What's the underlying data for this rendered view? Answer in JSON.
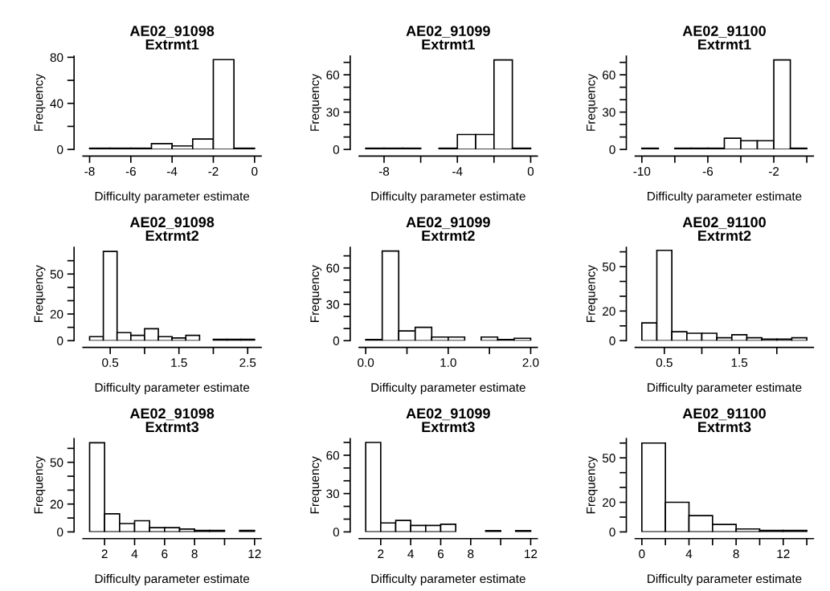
{
  "chart_data": [
    {
      "type": "histogram",
      "title": "AE02_91098\nExtrmt1",
      "xlabel": "Difficulty parameter estimate",
      "ylabel": "Frequency",
      "color": "#ffffff",
      "bins": [
        -8,
        -7,
        -6,
        -5,
        -4,
        -3,
        -2,
        -1,
        0
      ],
      "values": [
        1,
        1,
        1,
        5,
        3,
        9,
        78,
        1
      ],
      "xlim": [
        -8.32,
        0.32
      ],
      "ylim": [
        0,
        81
      ],
      "xticks": [
        -8,
        -6,
        -4,
        -2,
        0
      ],
      "yticks": [
        0,
        {
          "value": 20,
          "label": null
        },
        40,
        {
          "value": 60,
          "label": null
        },
        80
      ]
    },
    {
      "type": "histogram",
      "title": "AE02_91099\nExtrmt1",
      "xlabel": "Difficulty parameter estimate",
      "ylabel": "Frequency",
      "color": "#ffffff",
      "bins": [
        -9,
        -8,
        -7,
        -6,
        -5,
        -4,
        -3,
        -2,
        -1,
        0
      ],
      "values": [
        1,
        1,
        1,
        0,
        1,
        12,
        12,
        72,
        1
      ],
      "xlim": [
        -9.36,
        0.36
      ],
      "ylim": [
        0,
        75
      ],
      "xticks": [
        -8,
        {
          "value": -6,
          "label": null
        },
        -4,
        {
          "value": -2,
          "label": null
        },
        0
      ],
      "yticks": [
        0,
        {
          "value": 10,
          "label": null
        },
        {
          "value": 20,
          "label": null
        },
        30,
        {
          "value": 40,
          "label": null
        },
        {
          "value": 50,
          "label": null
        },
        60,
        {
          "value": 70,
          "label": null
        }
      ]
    },
    {
      "type": "histogram",
      "title": "AE02_91100\nExtrmt1",
      "xlabel": "Difficulty parameter estimate",
      "ylabel": "Frequency",
      "color": "#ffffff",
      "bins": [
        -10,
        -9,
        -8,
        -7,
        -6,
        -5,
        -4,
        -3,
        -2,
        -1,
        0
      ],
      "values": [
        1,
        0,
        1,
        1,
        1,
        9,
        7,
        7,
        72,
        1
      ],
      "xlim": [
        -10.4,
        0.4
      ],
      "ylim": [
        0,
        75
      ],
      "xticks": [
        -10,
        {
          "value": -8,
          "label": null
        },
        -6,
        {
          "value": -4,
          "label": null
        },
        -2,
        {
          "value": 0,
          "label": null
        }
      ],
      "yticks": [
        0,
        {
          "value": 10,
          "label": null
        },
        {
          "value": 20,
          "label": null
        },
        30,
        {
          "value": 40,
          "label": null
        },
        {
          "value": 50,
          "label": null
        },
        60,
        {
          "value": 70,
          "label": null
        }
      ]
    },
    {
      "type": "histogram",
      "title": "AE02_91098\nExtrmt2",
      "xlabel": "Difficulty parameter estimate",
      "ylabel": "Frequency",
      "color": "#ffffff",
      "bins": [
        0.2,
        0.4,
        0.6,
        0.8,
        1.0,
        1.2,
        1.4,
        1.6,
        1.8,
        2.0,
        2.2,
        2.4,
        2.6
      ],
      "values": [
        3,
        67,
        6,
        4,
        9,
        3,
        2,
        4,
        0,
        1,
        1,
        1
      ],
      "xlim": [
        0.104,
        2.696
      ],
      "ylim": [
        0,
        70
      ],
      "xticks": [
        0.5,
        {
          "value": 1.0,
          "label": null
        },
        1.5,
        {
          "value": 2.0,
          "label": null
        },
        2.5
      ],
      "yticks": [
        0,
        {
          "value": 10,
          "label": null
        },
        20,
        {
          "value": 30,
          "label": null
        },
        {
          "value": 40,
          "label": null
        },
        50,
        {
          "value": 60,
          "label": null
        }
      ]
    },
    {
      "type": "histogram",
      "title": "AE02_91099\nExtrmt2",
      "xlabel": "Difficulty parameter estimate",
      "ylabel": "Frequency",
      "color": "#ffffff",
      "bins": [
        0.0,
        0.2,
        0.4,
        0.6,
        0.8,
        1.0,
        1.2,
        1.4,
        1.6,
        1.8,
        2.0
      ],
      "values": [
        1,
        74,
        8,
        11,
        3,
        3,
        0,
        3,
        1,
        2
      ],
      "xlim": [
        -0.08,
        2.08
      ],
      "ylim": [
        0,
        77
      ],
      "xticks": [
        {
          "value": 0.0,
          "label": "0.0"
        },
        {
          "value": 0.5,
          "label": null
        },
        {
          "value": 1.0,
          "label": "1.0"
        },
        {
          "value": 1.5,
          "label": null
        },
        {
          "value": 2.0,
          "label": "2.0"
        }
      ],
      "yticks": [
        0,
        {
          "value": 10,
          "label": null
        },
        {
          "value": 20,
          "label": null
        },
        30,
        {
          "value": 40,
          "label": null
        },
        {
          "value": 50,
          "label": null
        },
        60,
        {
          "value": 70,
          "label": null
        }
      ]
    },
    {
      "type": "histogram",
      "title": "AE02_91100\nExtrmt2",
      "xlabel": "Difficulty parameter estimate",
      "ylabel": "Frequency",
      "color": "#ffffff",
      "bins": [
        0.2,
        0.4,
        0.6,
        0.8,
        1.0,
        1.2,
        1.4,
        1.6,
        1.8,
        2.0,
        2.2,
        2.4
      ],
      "values": [
        12,
        61,
        6,
        5,
        5,
        2,
        4,
        2,
        1,
        1,
        2
      ],
      "xlim": [
        0.112,
        2.488
      ],
      "ylim": [
        0,
        63
      ],
      "xticks": [
        0.5,
        {
          "value": 1.0,
          "label": null
        },
        1.5,
        {
          "value": 2.0,
          "label": null
        }
      ],
      "yticks": [
        0,
        {
          "value": 10,
          "label": null
        },
        20,
        {
          "value": 30,
          "label": null
        },
        {
          "value": 40,
          "label": null
        },
        50,
        {
          "value": 60,
          "label": null
        }
      ]
    },
    {
      "type": "histogram",
      "title": "AE02_91098\nExtrmt3",
      "xlabel": "Difficulty parameter estimate",
      "ylabel": "Frequency",
      "color": "#ffffff",
      "bins": [
        1,
        2,
        3,
        4,
        5,
        6,
        7,
        8,
        9,
        10,
        11,
        12
      ],
      "values": [
        64,
        13,
        6,
        8,
        3,
        3,
        2,
        1,
        1,
        0,
        1
      ],
      "xlim": [
        0.56,
        12.44
      ],
      "ylim": [
        0,
        67
      ],
      "xticks": [
        2,
        4,
        6,
        8,
        {
          "value": 10,
          "label": null
        },
        12
      ],
      "yticks": [
        0,
        {
          "value": 10,
          "label": null
        },
        20,
        {
          "value": 30,
          "label": null
        },
        {
          "value": 40,
          "label": null
        },
        50,
        {
          "value": 60,
          "label": null
        }
      ]
    },
    {
      "type": "histogram",
      "title": "AE02_91099\nExtrmt3",
      "xlabel": "Difficulty parameter estimate",
      "ylabel": "Frequency",
      "color": "#ffffff",
      "bins": [
        1,
        2,
        3,
        4,
        5,
        6,
        7,
        8,
        9,
        10,
        11,
        12
      ],
      "values": [
        70,
        7,
        9,
        5,
        5,
        6,
        0,
        0,
        1,
        0,
        1
      ],
      "xlim": [
        0.56,
        12.44
      ],
      "ylim": [
        0,
        73
      ],
      "xticks": [
        2,
        4,
        6,
        8,
        {
          "value": 10,
          "label": null
        },
        12
      ],
      "yticks": [
        0,
        {
          "value": 10,
          "label": null
        },
        {
          "value": 20,
          "label": null
        },
        30,
        {
          "value": 40,
          "label": null
        },
        {
          "value": 50,
          "label": null
        },
        60,
        {
          "value": 70,
          "label": null
        }
      ]
    },
    {
      "type": "histogram",
      "title": "AE02_91100\nExtrmt3",
      "xlabel": "Difficulty parameter estimate",
      "ylabel": "Frequency",
      "color": "#ffffff",
      "bins": [
        0,
        2,
        4,
        6,
        8,
        10,
        12,
        14
      ],
      "values": [
        60,
        20,
        11,
        5,
        2,
        1,
        1
      ],
      "xlim": [
        -0.56,
        14.56
      ],
      "ylim": [
        0,
        63
      ],
      "xticks": [
        0,
        {
          "value": 2,
          "label": null
        },
        4,
        {
          "value": 6,
          "label": null
        },
        8,
        {
          "value": 10,
          "label": null
        },
        12,
        {
          "value": 14,
          "label": null
        }
      ],
      "yticks": [
        0,
        {
          "value": 10,
          "label": null
        },
        20,
        {
          "value": 30,
          "label": null
        },
        {
          "value": 40,
          "label": null
        },
        50,
        {
          "value": 60,
          "label": null
        }
      ]
    }
  ]
}
